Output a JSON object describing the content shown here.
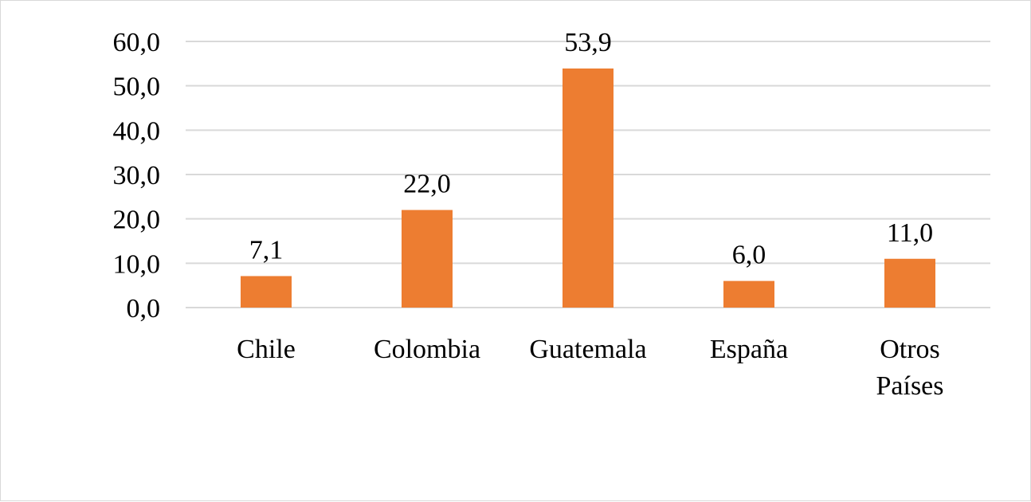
{
  "chart_data": {
    "type": "bar",
    "categories": [
      [
        "Chile"
      ],
      [
        "Colombia"
      ],
      [
        "Guatemala"
      ],
      [
        "España"
      ],
      [
        "Otros",
        "Países"
      ]
    ],
    "values": [
      7.1,
      22.0,
      53.9,
      6.0,
      11.0
    ],
    "value_labels": [
      "7,1",
      "22,0",
      "53,9",
      "6,0",
      "11,0"
    ],
    "y_ticks": [
      "0,0",
      "10,0",
      "20,0",
      "30,0",
      "40,0",
      "50,0",
      "60,0"
    ],
    "ylim": [
      0,
      60
    ],
    "grid": true,
    "legend": "none",
    "bar_color": "#ED7D31",
    "title": "",
    "xlabel": "",
    "ylabel": ""
  }
}
